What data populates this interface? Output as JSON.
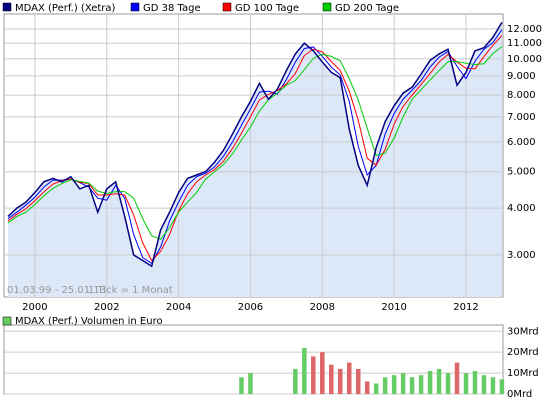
{
  "chart_data": [
    {
      "type": "line",
      "log_scale": true,
      "grid": true,
      "area_color": "#dce7f8",
      "annotations": [
        "01.03.99 - 25.01.13",
        "1 Tick = 1 Monat"
      ],
      "x": [
        1999.25,
        1999.5,
        1999.75,
        2000.0,
        2000.25,
        2000.5,
        2000.75,
        2001.0,
        2001.25,
        2001.5,
        2001.75,
        2002.0,
        2002.25,
        2002.5,
        2002.75,
        2003.0,
        2003.25,
        2003.5,
        2003.75,
        2004.0,
        2004.25,
        2004.5,
        2004.75,
        2005.0,
        2005.25,
        2005.5,
        2005.75,
        2006.0,
        2006.25,
        2006.5,
        2006.75,
        2007.0,
        2007.25,
        2007.5,
        2007.75,
        2008.0,
        2008.25,
        2008.5,
        2008.75,
        2009.0,
        2009.25,
        2009.5,
        2009.75,
        2010.0,
        2010.25,
        2010.5,
        2010.75,
        2011.0,
        2011.25,
        2011.5,
        2011.75,
        2012.0,
        2012.25,
        2012.5,
        2012.75,
        2013.0
      ],
      "xlim": [
        1999.14,
        2013.03
      ],
      "xticks": [
        2000,
        2002,
        2004,
        2006,
        2008,
        2010,
        2012
      ],
      "ylim": [
        2318,
        13160
      ],
      "yticks": [
        {
          "value": 3000,
          "label": "3.000"
        },
        {
          "value": 4000,
          "label": "4.000"
        },
        {
          "value": 5000,
          "label": "5.000"
        },
        {
          "value": 6000,
          "label": "6.000"
        },
        {
          "value": 7000,
          "label": "7.000"
        },
        {
          "value": 8000,
          "label": "8.000"
        },
        {
          "value": 9000,
          "label": "9.000"
        },
        {
          "value": 10000,
          "label": "10.000"
        },
        {
          "value": 11000,
          "label": "11.000"
        },
        {
          "value": 12000,
          "label": "12.000"
        }
      ],
      "series": [
        {
          "name": "MDAX (Perf.) (Xetra)",
          "color": "#000080",
          "values": [
            3800,
            4000,
            4150,
            4400,
            4700,
            4800,
            4700,
            4850,
            4500,
            4600,
            3900,
            4500,
            4700,
            3800,
            3000,
            2900,
            2800,
            3500,
            3900,
            4400,
            4800,
            4900,
            5000,
            5300,
            5700,
            6300,
            7000,
            7700,
            8600,
            7800,
            8300,
            9300,
            10300,
            11000,
            10500,
            9800,
            9200,
            8900,
            6500,
            5200,
            4600,
            5800,
            6800,
            7500,
            8100,
            8400,
            9100,
            9900,
            10300,
            10600,
            8500,
            9200,
            10500,
            10700,
            11400,
            12500
          ]
        },
        {
          "name": "GD 38 Tage",
          "color": "#0000ff",
          "values": [
            3750,
            3900,
            4075,
            4275,
            4550,
            4750,
            4750,
            4775,
            4675,
            4550,
            4250,
            4200,
            4600,
            4250,
            3400,
            2950,
            2850,
            3150,
            3700,
            4150,
            4600,
            4850,
            4950,
            5150,
            5500,
            6000,
            6650,
            7350,
            8150,
            8200,
            8050,
            8800,
            9800,
            10650,
            10750,
            10150,
            9500,
            9050,
            7700,
            5850,
            4900,
            5200,
            6300,
            7150,
            7800,
            8250,
            8750,
            9500,
            10100,
            10450,
            9550,
            8850,
            9850,
            10600,
            11050,
            11950
          ]
        },
        {
          "name": "GD 100 Tage",
          "color": "#ff0000",
          "values": [
            3700,
            3850,
            3983,
            4183,
            4417,
            4633,
            4733,
            4783,
            4683,
            4650,
            4333,
            4333,
            4367,
            4333,
            3833,
            3233,
            2900,
            3067,
            3400,
            3933,
            4367,
            4700,
            4900,
            5067,
            5333,
            5767,
            6333,
            7000,
            7767,
            8033,
            8233,
            8567,
            9133,
            10200,
            10600,
            10433,
            9833,
            9300,
            8200,
            6867,
            5433,
            5200,
            5733,
            6700,
            7467,
            8000,
            8533,
            9133,
            9800,
            10267,
            9800,
            9433,
            9400,
            10133,
            10867,
            11533
          ]
        },
        {
          "name": "GD 200 Tage",
          "color": "#00cc00",
          "values": [
            3650,
            3800,
            3900,
            4088,
            4313,
            4513,
            4650,
            4763,
            4713,
            4663,
            4438,
            4375,
            4425,
            4425,
            4250,
            3750,
            3375,
            3300,
            3550,
            3900,
            4150,
            4400,
            4775,
            5000,
            5225,
            5575,
            6075,
            6575,
            7250,
            7775,
            8100,
            8500,
            8750,
            9350,
            10025,
            10275,
            10150,
            9875,
            8850,
            7775,
            6525,
            5525,
            5600,
            6150,
            7000,
            7800,
            8275,
            8775,
            9300,
            9825,
            9825,
            9725,
            9650,
            9700,
            10325,
            10775
          ]
        }
      ]
    },
    {
      "type": "bar",
      "title": "MDAX (Perf.) Volumen in Euro",
      "color": "#66cc66",
      "down_color": "#dd6666",
      "x": [
        1999.25,
        1999.5,
        1999.75,
        2000.0,
        2000.25,
        2000.5,
        2000.75,
        2001.0,
        2001.25,
        2001.5,
        2001.75,
        2002.0,
        2002.25,
        2002.5,
        2002.75,
        2003.0,
        2003.25,
        2003.5,
        2003.75,
        2004.0,
        2004.25,
        2004.5,
        2004.75,
        2005.0,
        2005.25,
        2005.5,
        2005.75,
        2006.0,
        2006.25,
        2006.5,
        2006.75,
        2007.0,
        2007.25,
        2007.5,
        2007.75,
        2008.0,
        2008.25,
        2008.5,
        2008.75,
        2009.0,
        2009.25,
        2009.5,
        2009.75,
        2010.0,
        2010.25,
        2010.5,
        2010.75,
        2011.0,
        2011.25,
        2011.5,
        2011.75,
        2012.0,
        2012.25,
        2012.5,
        2012.75,
        2013.0
      ],
      "values": [
        null,
        null,
        null,
        null,
        null,
        null,
        null,
        null,
        null,
        null,
        null,
        null,
        null,
        null,
        null,
        null,
        null,
        null,
        null,
        null,
        null,
        null,
        null,
        null,
        null,
        null,
        8,
        10,
        null,
        null,
        null,
        null,
        12,
        22,
        18,
        20,
        14,
        12,
        15,
        12,
        6,
        5,
        8,
        9,
        10,
        8,
        9,
        11,
        12,
        10,
        15,
        10,
        11,
        9,
        8,
        7
      ],
      "xlim": [
        1999.14,
        2013.03
      ],
      "ylim": [
        0,
        33
      ],
      "yticks": [
        {
          "value": 0,
          "label": "0Mrd"
        },
        {
          "value": 10,
          "label": "10Mrd"
        },
        {
          "value": 20,
          "label": "20Mrd"
        },
        {
          "value": 30,
          "label": "30Mrd"
        }
      ]
    }
  ]
}
